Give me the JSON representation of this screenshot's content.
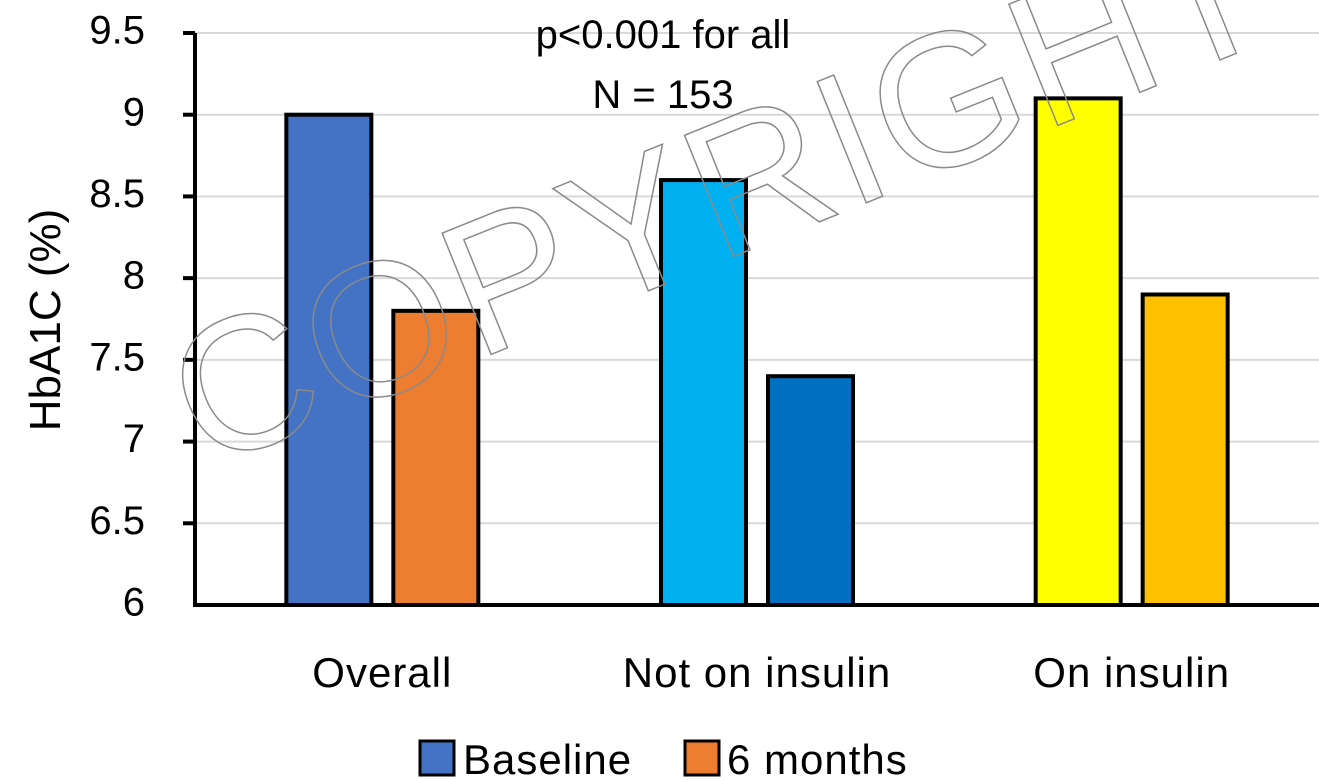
{
  "chart_data": {
    "type": "bar",
    "title": "",
    "xlabel": "",
    "ylabel": "HbA1C (%)",
    "ylim": [
      6,
      9.5
    ],
    "yticks": [
      "6",
      "6.5",
      "7",
      "7.5",
      "8",
      "8.5",
      "9",
      "9.5"
    ],
    "grid": true,
    "legend_position": "bottom",
    "categories": [
      "Overall",
      "Not on insulin",
      "On insulin"
    ],
    "series": [
      {
        "name": "Baseline",
        "values": [
          9.0,
          8.6,
          9.1
        ],
        "colors": [
          "#4472C4",
          "#00B0F0",
          "#FFFF00"
        ]
      },
      {
        "name": "6 months",
        "values": [
          7.8,
          7.4,
          7.9
        ],
        "colors": [
          "#ED7D31",
          "#0070C0",
          "#FFC000"
        ]
      }
    ],
    "legend": [
      {
        "label": "Baseline",
        "color": "#4472C4"
      },
      {
        "label": "6 months",
        "color": "#ED7D31"
      }
    ],
    "annotations": [
      "p<0.001 for all",
      "N = 153"
    ],
    "watermark": "COPYRIGHT"
  }
}
